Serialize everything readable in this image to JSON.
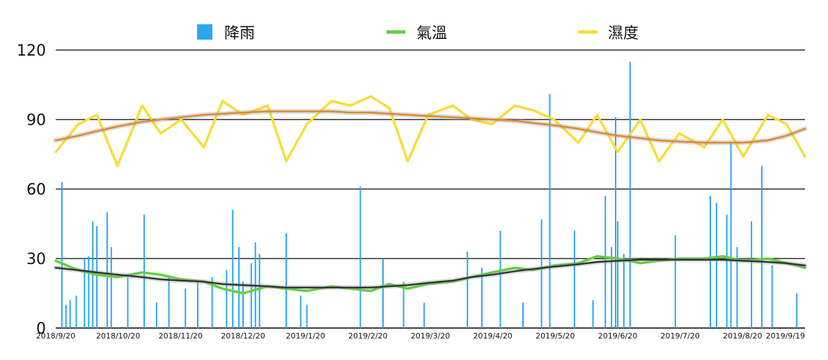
{
  "chart_data": {
    "type": "bar+line",
    "title": "",
    "xlabel": "",
    "ylabel": "",
    "ylim": [
      0,
      120
    ],
    "yticks": [
      0,
      30,
      60,
      90,
      120
    ],
    "grid": true,
    "legend_position": "top",
    "x_start": "2018-09-20",
    "x_end": "2019-09-19",
    "x_tick_labels": [
      "2018/9/20",
      "2018/10/20",
      "2018/11/20",
      "2018/12/20",
      "2019/1/20",
      "2019/2/20",
      "2019/3/20",
      "2019/4/20",
      "2019/5/20",
      "2019/6/20",
      "2019/7/20",
      "2019/8/20",
      "2019/9/19"
    ],
    "series": [
      {
        "name": "降雨",
        "kind": "bar",
        "color": "#2aa6f5",
        "x": [
          "2018-09-23",
          "2018-09-25",
          "2018-09-27",
          "2018-09-30",
          "2018-10-04",
          "2018-10-06",
          "2018-10-08",
          "2018-10-10",
          "2018-10-15",
          "2018-10-17",
          "2018-10-25",
          "2018-11-02",
          "2018-11-08",
          "2018-11-14",
          "2018-11-22",
          "2018-11-28",
          "2018-12-05",
          "2018-12-12",
          "2018-12-15",
          "2018-12-18",
          "2018-12-20",
          "2018-12-24",
          "2018-12-26",
          "2018-12-28",
          "2019-01-10",
          "2019-01-17",
          "2019-01-20",
          "2019-02-15",
          "2019-02-26",
          "2019-03-08",
          "2019-03-18",
          "2019-04-08",
          "2019-04-15",
          "2019-04-24",
          "2019-05-05",
          "2019-05-14",
          "2019-05-18",
          "2019-05-30",
          "2019-06-08",
          "2019-06-14",
          "2019-06-17",
          "2019-06-19",
          "2019-06-20",
          "2019-06-23",
          "2019-06-26",
          "2019-07-18",
          "2019-08-04",
          "2019-08-07",
          "2019-08-12",
          "2019-08-14",
          "2019-08-17",
          "2019-08-24",
          "2019-08-29",
          "2019-09-03",
          "2019-09-15"
        ],
        "values": [
          63,
          10,
          12,
          14,
          30,
          31,
          46,
          44,
          50,
          35,
          22,
          49,
          11,
          22,
          17,
          20,
          22,
          25,
          51,
          35,
          20,
          28,
          37,
          32,
          41,
          14,
          10,
          61,
          30,
          20,
          11,
          33,
          26,
          42,
          11,
          47,
          101,
          42,
          12,
          57,
          35,
          91,
          46,
          32,
          115,
          40,
          57,
          54,
          49,
          80,
          35,
          46,
          70,
          27,
          15
        ]
      },
      {
        "name": "氣溫",
        "kind": "line",
        "color": "#5fd336",
        "trend_color": "#2d3a2d",
        "x": [
          "2018-09-20",
          "2018-10-01",
          "2018-10-10",
          "2018-10-20",
          "2018-11-01",
          "2018-11-10",
          "2018-11-20",
          "2018-12-01",
          "2018-12-10",
          "2018-12-20",
          "2019-01-01",
          "2019-01-10",
          "2019-01-20",
          "2019-02-01",
          "2019-02-10",
          "2019-02-20",
          "2019-03-01",
          "2019-03-10",
          "2019-03-20",
          "2019-04-01",
          "2019-04-10",
          "2019-04-20",
          "2019-05-01",
          "2019-05-10",
          "2019-05-20",
          "2019-06-01",
          "2019-06-10",
          "2019-06-20",
          "2019-07-01",
          "2019-07-10",
          "2019-07-20",
          "2019-08-01",
          "2019-08-10",
          "2019-08-20",
          "2019-09-01",
          "2019-09-10",
          "2019-09-19"
        ],
        "values": [
          29,
          25,
          23,
          22,
          24,
          23,
          21,
          20,
          17,
          15,
          18,
          17,
          16,
          18,
          17,
          16,
          19,
          17,
          19,
          20,
          22,
          24,
          26,
          25,
          27,
          28,
          31,
          30,
          28,
          29,
          30,
          30,
          31,
          29,
          30,
          28,
          26
        ],
        "trend": [
          26,
          25,
          24,
          23,
          22,
          21,
          20.5,
          20,
          19,
          18.5,
          18,
          17.5,
          17.5,
          17.5,
          17.5,
          17.5,
          18,
          18.5,
          19.5,
          20.5,
          22,
          23,
          24.5,
          25.5,
          26.5,
          27.5,
          28.5,
          29,
          29.5,
          29.5,
          29.5,
          29.5,
          29.5,
          29,
          28.5,
          28,
          27
        ]
      },
      {
        "name": "濕度",
        "kind": "line",
        "color": "#f8dc3a",
        "trend_color": "#e0892a",
        "x": [
          "2018-09-20",
          "2018-10-01",
          "2018-10-10",
          "2018-10-20",
          "2018-11-01",
          "2018-11-10",
          "2018-11-20",
          "2018-12-01",
          "2018-12-10",
          "2018-12-20",
          "2019-01-01",
          "2019-01-10",
          "2019-01-20",
          "2019-02-01",
          "2019-02-10",
          "2019-02-20",
          "2019-03-01",
          "2019-03-10",
          "2019-03-20",
          "2019-04-01",
          "2019-04-10",
          "2019-04-20",
          "2019-05-01",
          "2019-05-10",
          "2019-05-20",
          "2019-06-01",
          "2019-06-10",
          "2019-06-20",
          "2019-07-01",
          "2019-07-10",
          "2019-07-20",
          "2019-08-01",
          "2019-08-10",
          "2019-08-20",
          "2019-09-01",
          "2019-09-10",
          "2019-09-19"
        ],
        "values": [
          76,
          88,
          92,
          70,
          96,
          84,
          90,
          78,
          98,
          92,
          96,
          72,
          88,
          98,
          96,
          100,
          95,
          72,
          92,
          96,
          90,
          88,
          96,
          94,
          90,
          80,
          92,
          76,
          90,
          72,
          84,
          78,
          90,
          74,
          92,
          88,
          74
        ],
        "trend": [
          81,
          83,
          85,
          87,
          89,
          90,
          91,
          92,
          92.5,
          93,
          93.5,
          93.5,
          93.5,
          93.5,
          93,
          93,
          92.5,
          92,
          91.5,
          91,
          90.5,
          90,
          89.5,
          88.5,
          87.5,
          86,
          84.5,
          83,
          82,
          81,
          80.5,
          80,
          80,
          80,
          81,
          83,
          86
        ]
      }
    ]
  }
}
